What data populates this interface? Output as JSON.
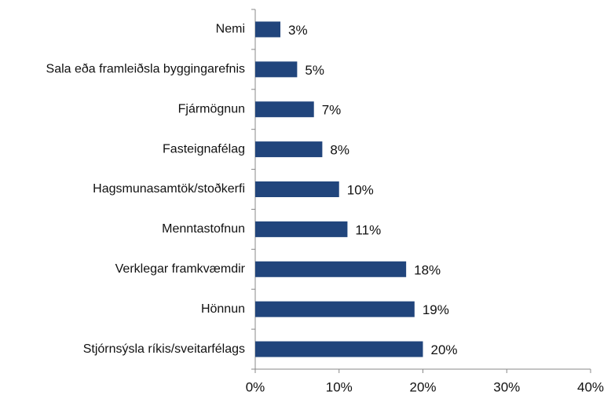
{
  "chart_data": {
    "type": "barh",
    "categories": [
      "Nemi",
      "Sala eða framleiðsla byggingarefnis",
      "Fjármögnun",
      "Fasteignafélag",
      "Hagsmunasamtök/stoðkerfi",
      "Menntastofnun",
      "Verklegar framkvæmdir",
      "Hönnun",
      "Stjórnsýsla ríkis/sveitarfélags"
    ],
    "values": [
      3,
      5,
      7,
      8,
      10,
      11,
      18,
      19,
      20
    ],
    "value_labels": [
      "3%",
      "5%",
      "7%",
      "8%",
      "10%",
      "11%",
      "18%",
      "19%",
      "20%"
    ],
    "color": "#21457c",
    "xlim": [
      0,
      40
    ],
    "xticks": [
      {
        "value": 0,
        "label": "0%"
      },
      {
        "value": 10,
        "label": "10%"
      },
      {
        "value": 20,
        "label": "20%"
      },
      {
        "value": 30,
        "label": "30%"
      },
      {
        "value": 40,
        "label": "40%"
      }
    ]
  }
}
